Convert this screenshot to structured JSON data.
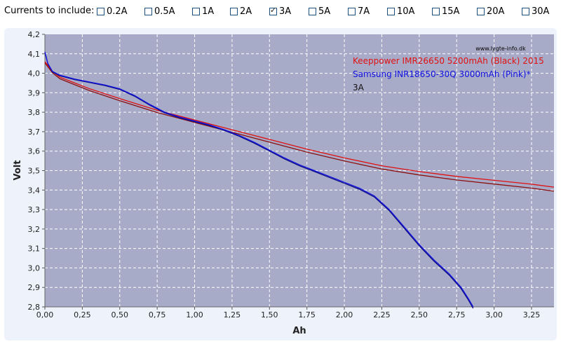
{
  "toolbar": {
    "label": "Currents to include:",
    "options": [
      {
        "label": "0.2A",
        "checked": false
      },
      {
        "label": "0.5A",
        "checked": false
      },
      {
        "label": "1A",
        "checked": false
      },
      {
        "label": "2A",
        "checked": false
      },
      {
        "label": "3A",
        "checked": true
      },
      {
        "label": "5A",
        "checked": false
      },
      {
        "label": "7A",
        "checked": false
      },
      {
        "label": "10A",
        "checked": false
      },
      {
        "label": "15A",
        "checked": false
      },
      {
        "label": "20A",
        "checked": false
      },
      {
        "label": "30A",
        "checked": false
      }
    ]
  },
  "chart_data": {
    "type": "line",
    "xlabel": "Ah",
    "ylabel": "Volt",
    "xlim": [
      0,
      3.4
    ],
    "ylim": [
      2.8,
      4.2
    ],
    "xticks": [
      "0,00",
      "0,25",
      "0,50",
      "0,75",
      "1,00",
      "1,25",
      "1,50",
      "1,75",
      "2,00",
      "2,25",
      "2,50",
      "2,75",
      "3,00",
      "3,25"
    ],
    "yticks": [
      "2,8",
      "2,9",
      "3,0",
      "3,1",
      "3,2",
      "3,3",
      "3,4",
      "3,5",
      "3,6",
      "3,7",
      "3,8",
      "3,9",
      "4,0",
      "4,1",
      "4,2"
    ],
    "grid": true,
    "watermark": "www.lygte-info.dk",
    "legend_position": "top-right",
    "legend_note": "3A",
    "background": "#a8abc8",
    "series": [
      {
        "name": "Keeppower IMR26650 5200mAh (Black) 2015",
        "color": "#e01010",
        "dark_color": "#8b1010",
        "points": [
          [
            0,
            4.06
          ],
          [
            0.05,
            4.01
          ],
          [
            0.1,
            3.98
          ],
          [
            0.2,
            3.95
          ],
          [
            0.3,
            3.92
          ],
          [
            0.5,
            3.87
          ],
          [
            0.75,
            3.81
          ],
          [
            1.0,
            3.76
          ],
          [
            1.25,
            3.71
          ],
          [
            1.5,
            3.66
          ],
          [
            1.75,
            3.61
          ],
          [
            2.0,
            3.565
          ],
          [
            2.25,
            3.525
          ],
          [
            2.5,
            3.495
          ],
          [
            2.75,
            3.47
          ],
          [
            3.0,
            3.45
          ],
          [
            3.25,
            3.43
          ],
          [
            3.4,
            3.415
          ]
        ]
      },
      {
        "name": "Samsung INR18650-30Q 3000mAh (Pink)*",
        "color": "#1010e0",
        "dark_color": "#101080",
        "points": [
          [
            0,
            4.11
          ],
          [
            0.02,
            4.05
          ],
          [
            0.05,
            4.01
          ],
          [
            0.1,
            3.99
          ],
          [
            0.2,
            3.97
          ],
          [
            0.3,
            3.955
          ],
          [
            0.4,
            3.94
          ],
          [
            0.5,
            3.92
          ],
          [
            0.6,
            3.885
          ],
          [
            0.7,
            3.84
          ],
          [
            0.8,
            3.8
          ],
          [
            0.9,
            3.775
          ],
          [
            1.0,
            3.755
          ],
          [
            1.1,
            3.735
          ],
          [
            1.2,
            3.71
          ],
          [
            1.3,
            3.68
          ],
          [
            1.4,
            3.645
          ],
          [
            1.5,
            3.605
          ],
          [
            1.6,
            3.565
          ],
          [
            1.7,
            3.53
          ],
          [
            1.8,
            3.5
          ],
          [
            1.9,
            3.47
          ],
          [
            2.0,
            3.44
          ],
          [
            2.1,
            3.41
          ],
          [
            2.2,
            3.37
          ],
          [
            2.3,
            3.3
          ],
          [
            2.4,
            3.21
          ],
          [
            2.5,
            3.12
          ],
          [
            2.6,
            3.04
          ],
          [
            2.7,
            2.97
          ],
          [
            2.78,
            2.9
          ],
          [
            2.83,
            2.84
          ],
          [
            2.86,
            2.8
          ]
        ]
      }
    ]
  }
}
